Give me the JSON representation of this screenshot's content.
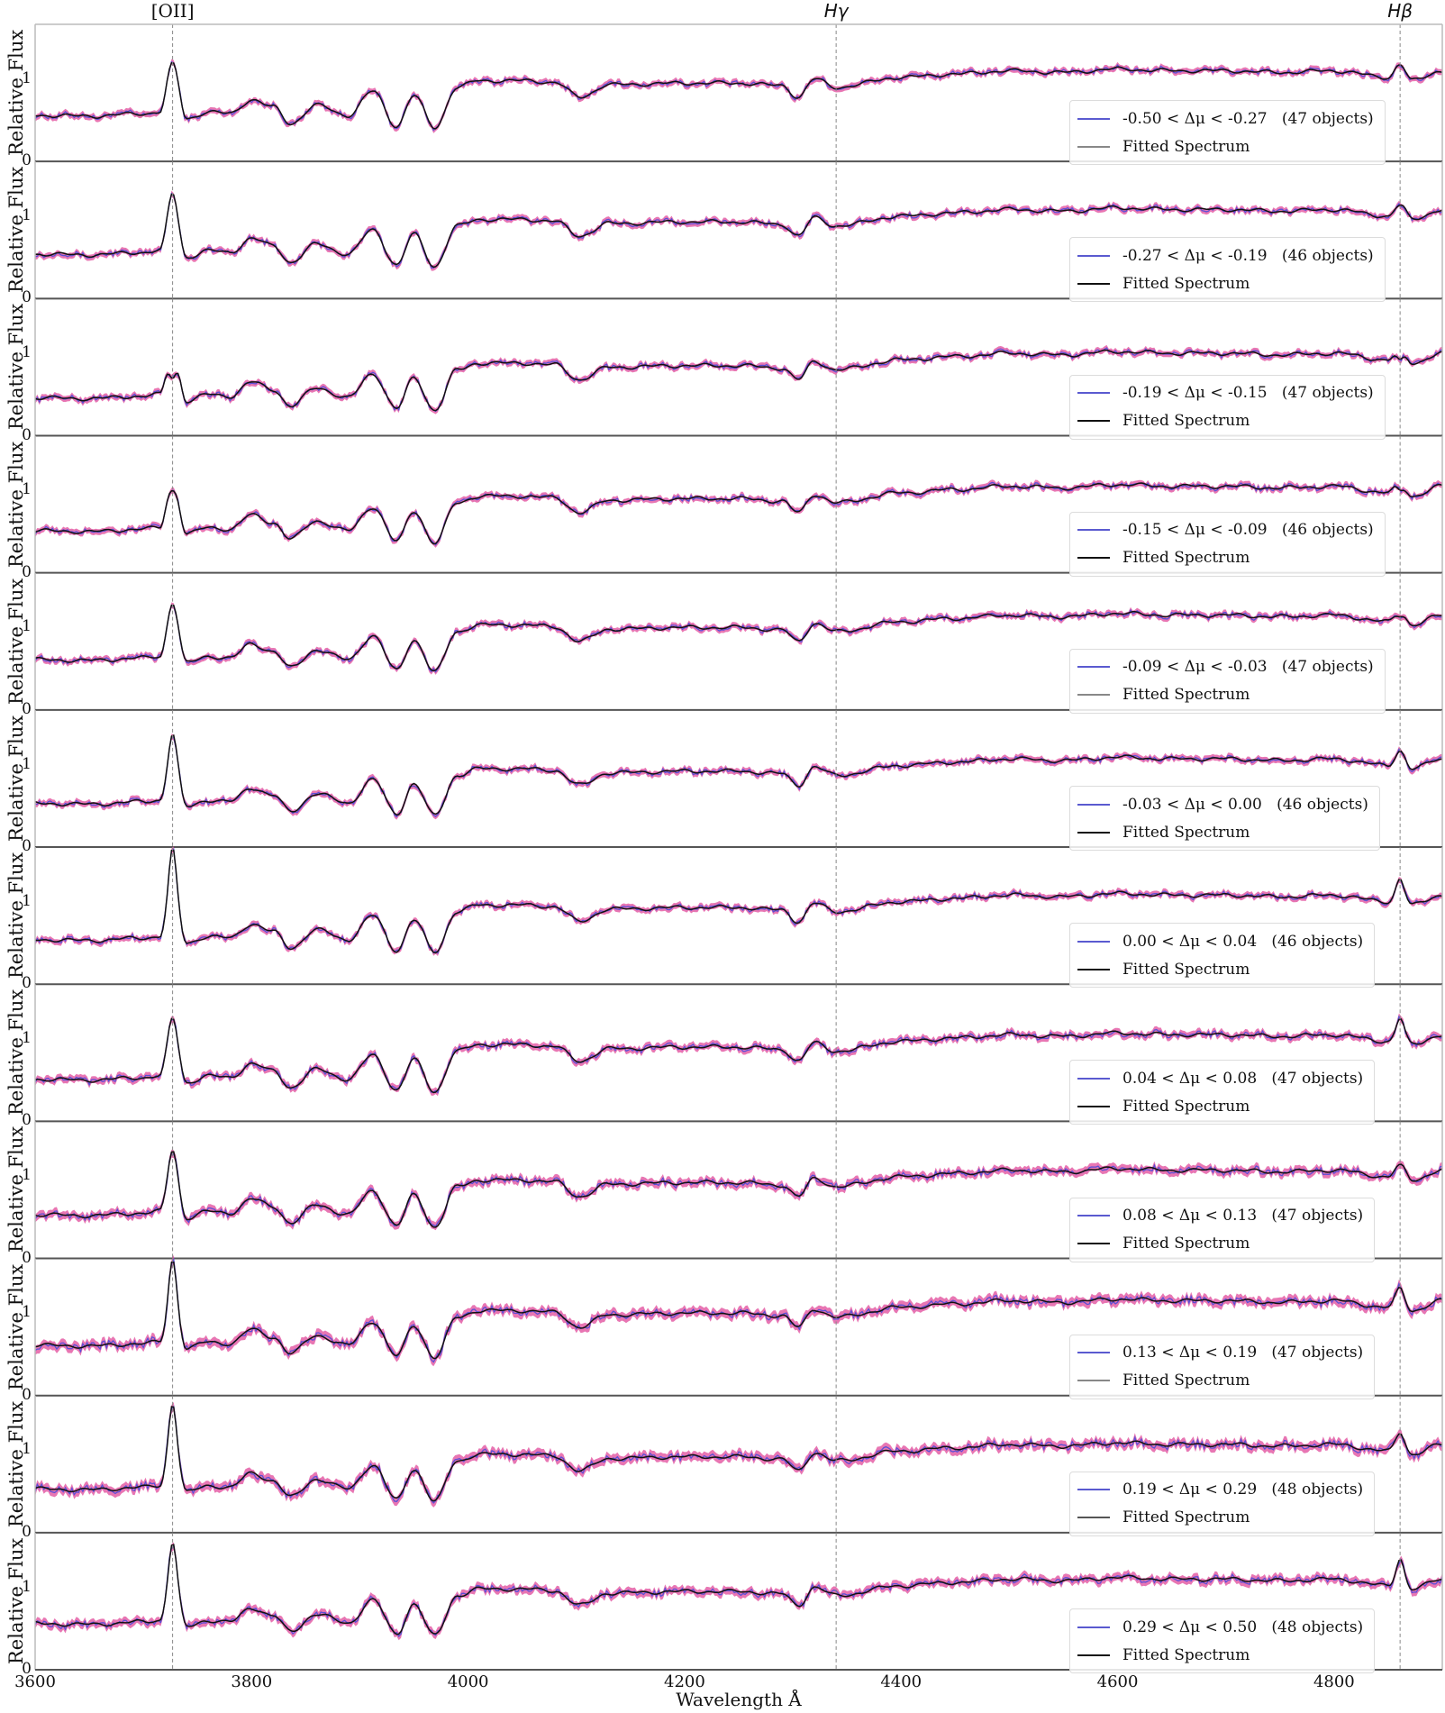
{
  "figure": {
    "xlabel": "Wavelength Å",
    "ylabel": "Relative Flux",
    "x_ticks": [
      "3600",
      "3800",
      "4000",
      "4200",
      "4400",
      "4600",
      "4800"
    ],
    "y_ticks": [
      "0",
      "1"
    ],
    "line_markers": [
      {
        "label": "[OII]",
        "wavelength": 3727,
        "italic": false
      },
      {
        "label": "Hγ",
        "wavelength": 4340,
        "italic": true
      },
      {
        "label": "Hβ",
        "wavelength": 4861,
        "italic": true
      }
    ],
    "fitted_label": "Fitted Spectrum",
    "colors": {
      "observed": "#5b4fd6",
      "error_band": "#e0489a",
      "fit": "#111111",
      "marker_line": "#888888",
      "spine": "#555555"
    }
  },
  "panels": [
    {
      "range": "-0.50 < Δμ < -0.27",
      "count": "(47 objects)",
      "fit_color": "#888888"
    },
    {
      "range": "-0.27 < Δμ < -0.19",
      "count": "(46 objects)",
      "fit_color": "#111111"
    },
    {
      "range": "-0.19 < Δμ < -0.15",
      "count": "(47 objects)",
      "fit_color": "#111111"
    },
    {
      "range": "-0.15 < Δμ < -0.09",
      "count": "(46 objects)",
      "fit_color": "#111111"
    },
    {
      "range": "-0.09 < Δμ < -0.03",
      "count": "(47 objects)",
      "fit_color": "#888888"
    },
    {
      "range": "-0.03 < Δμ < 0.00",
      "count": "(46 objects)",
      "fit_color": "#111111"
    },
    {
      "range": "0.00 < Δμ < 0.04",
      "count": "(46 objects)",
      "fit_color": "#111111"
    },
    {
      "range": "0.04 < Δμ < 0.08",
      "count": "(47 objects)",
      "fit_color": "#111111"
    },
    {
      "range": "0.08 < Δμ < 0.13",
      "count": "(47 objects)",
      "fit_color": "#111111"
    },
    {
      "range": "0.13 < Δμ < 0.19",
      "count": "(47 objects)",
      "fit_color": "#888888"
    },
    {
      "range": "0.19 < Δμ < 0.29",
      "count": "(48 objects)",
      "fit_color": "#555555"
    },
    {
      "range": "0.29 < Δμ < 0.50",
      "count": "(48 objects)",
      "fit_color": "#111111"
    }
  ],
  "chart_data": {
    "type": "line",
    "title": "",
    "xlabel": "Wavelength Å",
    "ylabel": "Relative Flux",
    "xlim": [
      3600,
      4900
    ],
    "ylim": [
      0,
      1.67
    ],
    "grid": false,
    "legend_position": "lower right (each panel)",
    "annotations": [
      "[OII] (3727 Å)",
      "Hγ (4340 Å)",
      "Hβ (4861 Å)"
    ],
    "continuum_template": {
      "x": [
        3600,
        3650,
        3700,
        3715,
        3727,
        3740,
        3760,
        3780,
        3800,
        3820,
        3836,
        3860,
        3889,
        3912,
        3934,
        3950,
        3969,
        3990,
        4010,
        4050,
        4080,
        4103,
        4130,
        4200,
        4250,
        4290,
        4305,
        4320,
        4340,
        4400,
        4450,
        4500,
        4550,
        4600,
        4650,
        4700,
        4750,
        4800,
        4850,
        4861,
        4872,
        4900
      ],
      "y": [
        0.56,
        0.55,
        0.58,
        0.6,
        1.18,
        0.52,
        0.6,
        0.58,
        0.75,
        0.66,
        0.46,
        0.68,
        0.56,
        0.85,
        0.43,
        0.8,
        0.41,
        0.9,
        0.98,
        0.98,
        0.96,
        0.78,
        0.93,
        0.95,
        0.95,
        0.92,
        0.78,
        1.0,
        0.9,
        1.02,
        1.06,
        1.1,
        1.08,
        1.12,
        1.1,
        1.1,
        1.08,
        1.1,
        1.02,
        1.18,
        0.98,
        1.1
      ]
    },
    "series": [
      {
        "name": "-0.50 < Δμ < -0.27 (47 objects)",
        "oii_peak": 1.18,
        "hb_peak": 1.18,
        "continuum_offset": 0.0,
        "noise": 0.03
      },
      {
        "name": "-0.27 < Δμ < -0.19 (46 objects)",
        "oii_peak": 1.3,
        "hb_peak": 1.15,
        "continuum_offset": -0.02,
        "noise": 0.03
      },
      {
        "name": "-0.19 < Δμ < -0.15 (47 objects)",
        "oii_peak": 0.8,
        "hb_peak": 1.0,
        "continuum_offset": -0.1,
        "noise": 0.03
      },
      {
        "name": "-0.15 < Δμ < -0.09 (46 objects)",
        "oii_peak": 1.05,
        "hb_peak": 1.05,
        "continuum_offset": -0.05,
        "noise": 0.03
      },
      {
        "name": "-0.09 < Δμ < -0.03 (47 objects)",
        "oii_peak": 1.25,
        "hb_peak": 1.1,
        "continuum_offset": 0.05,
        "noise": 0.03
      },
      {
        "name": "-0.03 < Δμ < 0.00 (46 objects)",
        "oii_peak": 1.4,
        "hb_peak": 1.2,
        "continuum_offset": -0.03,
        "noise": 0.03
      },
      {
        "name": "0.00 < Δμ < 0.04 (46 objects)",
        "oii_peak": 1.65,
        "hb_peak": 1.3,
        "continuum_offset": -0.02,
        "noise": 0.03
      },
      {
        "name": "0.04 < Δμ < 0.08 (47 objects)",
        "oii_peak": 1.3,
        "hb_peak": 1.3,
        "continuum_offset": -0.05,
        "noise": 0.035
      },
      {
        "name": "0.08 < Δμ < 0.13 (47 objects)",
        "oii_peak": 1.35,
        "hb_peak": 1.15,
        "continuum_offset": -0.03,
        "noise": 0.04
      },
      {
        "name": "0.13 < Δμ < 0.19 (47 objects)",
        "oii_peak": 1.6,
        "hb_peak": 1.25,
        "continuum_offset": 0.05,
        "noise": 0.045
      },
      {
        "name": "0.19 < Δμ < 0.29 (48 objects)",
        "oii_peak": 1.6,
        "hb_peak": 1.25,
        "continuum_offset": -0.03,
        "noise": 0.045
      },
      {
        "name": "0.29 < Δμ < 0.50 (48 objects)",
        "oii_peak": 1.55,
        "hb_peak": 1.35,
        "continuum_offset": 0.0,
        "noise": 0.04
      }
    ]
  }
}
